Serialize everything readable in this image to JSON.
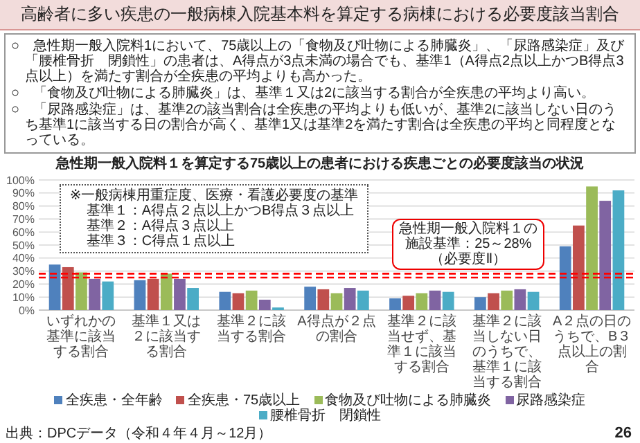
{
  "chart_data": {
    "type": "bar",
    "title": "高齢者に多い疾患の一般病棟入院基本料を算定する病棟における必要度該当割合",
    "subtitle": "急性期一般入院料１を算定する75歳以上の患者における疾患ごとの必要度該当の状況",
    "categories": [
      "いずれかの基準に該当する割合",
      "基準１又は２に該当する割合",
      "基準２に該当する割合",
      "A得点が２点の割合",
      "基準２に該当せず、基準１に該当する割合",
      "基準２に該当しない日のうちで、基準１に該当する割合",
      "A２点の日のうちで、B３点以上の割合"
    ],
    "series": [
      {
        "name": "全疾患・全年齢",
        "color": "#4f81bd",
        "values": [
          35,
          23,
          14,
          18,
          9,
          10,
          49
        ]
      },
      {
        "name": "全疾患・75歳以上",
        "color": "#c0504d",
        "values": [
          33,
          24,
          13,
          16,
          11,
          13,
          65
        ]
      },
      {
        "name": "食物及び吐物による肺臓炎",
        "color": "#9bbb59",
        "values": [
          29,
          28,
          15,
          13,
          13,
          15,
          95
        ]
      },
      {
        "name": "尿路感染症",
        "color": "#8064a2",
        "values": [
          24,
          24,
          8,
          17,
          15,
          16,
          84
        ]
      },
      {
        "name": "腰椎骨折　閉鎖性",
        "color": "#4bacc6",
        "values": [
          22,
          17,
          2,
          15,
          14,
          14,
          92
        ]
      }
    ],
    "ylim": [
      0,
      100
    ],
    "yticks": [
      {
        "value": 0,
        "label": "0%"
      },
      {
        "value": 10,
        "label": "10%"
      },
      {
        "value": 20,
        "label": "20%"
      },
      {
        "value": 30,
        "label": "30%"
      },
      {
        "value": 40,
        "label": "40%"
      },
      {
        "value": 50,
        "label": "50%"
      },
      {
        "value": 60,
        "label": "60%"
      },
      {
        "value": 70,
        "label": "70%"
      },
      {
        "value": 80,
        "label": "80%"
      },
      {
        "value": 90,
        "label": "90%"
      },
      {
        "value": 100,
        "label": "100%"
      }
    ],
    "grid": "y",
    "legend": "bottom",
    "ref_lines": [
      {
        "axis": "y",
        "value": 25,
        "color": "#ff0000",
        "line_style": "dashed"
      },
      {
        "axis": "y",
        "value": 28,
        "color": "#ff0000",
        "line_style": "dashed"
      }
    ],
    "annotations": [
      "○　急性期一般入院料1において、75歳以上の「食物及び吐物による肺臓炎」、「尿路感染症」及び「腰椎骨折　閉鎖性」の患者は、A得点が3点未満の場合でも、基準1（A得点2点以上かつB得点3点以上）を満たす割合が全疾患の平均よりも高かった。",
      "○　「食物及び吐物による肺臓炎」は、基準１又は2に該当する割合が全疾患の平均より高い。",
      "○　「尿路感染症」は、基準2の該当割合は全疾患の平均よりも低いが、基準2に該当しない日のうち基準1に該当する日の割合が高く、基準1又は基準2を満たす割合は全疾患の平均と同程度となっている。",
      "※一般病棟用重症度、医療・看護必要度の基準",
      "基準１：A得点２点以上かつB得点３点以上",
      "基準２：A得点３点以上",
      "基準３：C得点１点以上",
      "急性期一般入院料１の施設基準：25～28%（必要度Ⅱ）",
      "出典：DPCデータ（令和４年４月～12月）",
      "26"
    ]
  }
}
